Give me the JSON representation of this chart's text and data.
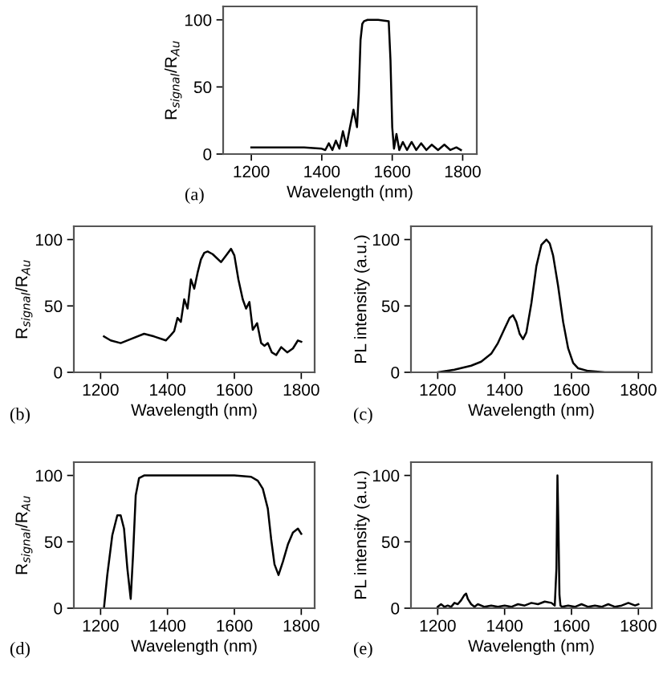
{
  "chart_data": [
    {
      "type": "line",
      "xlabel": "Wavelength (nm)",
      "ylabel": "R$_{signal}$/R$_{Au}$",
      "annotations": [
        "(a)"
      ],
      "xlim": [
        1120,
        1840
      ],
      "ylim": [
        0,
        110
      ],
      "xticks": [
        1200,
        1400,
        1600,
        1800
      ],
      "yticks": [
        0,
        50,
        100
      ],
      "grid": false,
      "series": [
        {
          "color": "#000000",
          "x": [
            1200,
            1250,
            1300,
            1350,
            1400,
            1410,
            1420,
            1430,
            1440,
            1450,
            1460,
            1470,
            1480,
            1490,
            1500,
            1505,
            1510,
            1515,
            1520,
            1530,
            1560,
            1590,
            1595,
            1600,
            1605,
            1612,
            1620,
            1630,
            1642,
            1655,
            1668,
            1682,
            1697,
            1712,
            1730,
            1748,
            1765,
            1782,
            1795
          ],
          "values": [
            5,
            5,
            5,
            5,
            4,
            3,
            8,
            3,
            10,
            4,
            17,
            6,
            20,
            33,
            20,
            45,
            85,
            97,
            99,
            100,
            100,
            99,
            70,
            20,
            4,
            15,
            3,
            9,
            3,
            9,
            3,
            8,
            3,
            7,
            3,
            7,
            3,
            5,
            3
          ]
        }
      ]
    },
    {
      "type": "line",
      "xlabel": "Wavelength (nm)",
      "ylabel": "R$_{signal}$/R$_{Au}$",
      "annotations": [
        "(b)"
      ],
      "xlim": [
        1120,
        1840
      ],
      "ylim": [
        0,
        110
      ],
      "xticks": [
        1200,
        1400,
        1600,
        1800
      ],
      "yticks": [
        0,
        50,
        100
      ],
      "grid": false,
      "series": [
        {
          "color": "#000000",
          "x": [
            1210,
            1230,
            1260,
            1290,
            1330,
            1360,
            1395,
            1410,
            1420,
            1430,
            1440,
            1450,
            1460,
            1470,
            1480,
            1490,
            1500,
            1510,
            1520,
            1535,
            1560,
            1575,
            1590,
            1600,
            1612,
            1625,
            1635,
            1645,
            1655,
            1668,
            1680,
            1690,
            1700,
            1712,
            1725,
            1740,
            1758,
            1775,
            1790,
            1800
          ],
          "values": [
            27,
            24,
            22,
            25,
            29,
            27,
            24,
            28,
            31,
            41,
            38,
            55,
            48,
            70,
            63,
            75,
            85,
            90,
            91,
            89,
            83,
            88,
            93,
            88,
            70,
            55,
            48,
            53,
            32,
            37,
            22,
            20,
            22,
            15,
            13,
            19,
            15,
            18,
            24,
            23
          ]
        }
      ]
    },
    {
      "type": "line",
      "xlabel": "Wavelength (nm)",
      "ylabel": "PL intensity (a.u.)",
      "annotations": [
        "(c)"
      ],
      "xlim": [
        1120,
        1840
      ],
      "ylim": [
        0,
        110
      ],
      "xticks": [
        1200,
        1400,
        1600,
        1800
      ],
      "yticks": [
        0,
        50,
        100
      ],
      "grid": false,
      "series": [
        {
          "color": "#000000",
          "x": [
            1200,
            1250,
            1300,
            1330,
            1360,
            1380,
            1400,
            1415,
            1425,
            1435,
            1445,
            1455,
            1465,
            1480,
            1495,
            1510,
            1525,
            1535,
            1545,
            1560,
            1575,
            1590,
            1605,
            1620,
            1650,
            1700,
            1800
          ],
          "values": [
            0,
            2,
            5,
            8,
            14,
            22,
            33,
            41,
            43,
            38,
            29,
            25,
            30,
            52,
            80,
            96,
            100,
            97,
            88,
            65,
            38,
            18,
            7,
            3,
            1,
            0,
            0
          ]
        }
      ]
    },
    {
      "type": "line",
      "xlabel": "Wavelength (nm)",
      "ylabel": "R$_{signal}$/R$_{Au}$",
      "annotations": [
        "(d)"
      ],
      "xlim": [
        1120,
        1840
      ],
      "ylim": [
        0,
        110
      ],
      "xticks": [
        1200,
        1400,
        1600,
        1800
      ],
      "yticks": [
        0,
        50,
        100
      ],
      "grid": false,
      "series": [
        {
          "color": "#000000",
          "x": [
            1210,
            1220,
            1235,
            1250,
            1260,
            1270,
            1280,
            1290,
            1297,
            1305,
            1315,
            1330,
            1400,
            1500,
            1600,
            1650,
            1670,
            1685,
            1700,
            1710,
            1720,
            1732,
            1745,
            1760,
            1775,
            1790,
            1800
          ],
          "values": [
            0,
            25,
            55,
            70,
            70,
            60,
            30,
            7,
            40,
            85,
            98,
            100,
            100,
            100,
            100,
            99,
            96,
            90,
            75,
            52,
            33,
            25,
            35,
            48,
            57,
            60,
            56
          ]
        }
      ]
    },
    {
      "type": "line",
      "xlabel": "Wavelength (nm)",
      "ylabel": "PL intensity (a.u.)",
      "annotations": [
        "(e)"
      ],
      "xlim": [
        1120,
        1840
      ],
      "ylim": [
        0,
        110
      ],
      "xticks": [
        1200,
        1400,
        1600,
        1800
      ],
      "yticks": [
        0,
        50,
        100
      ],
      "grid": false,
      "series": [
        {
          "color": "#000000",
          "x": [
            1200,
            1210,
            1220,
            1230,
            1240,
            1250,
            1260,
            1270,
            1280,
            1285,
            1290,
            1300,
            1310,
            1320,
            1340,
            1360,
            1380,
            1400,
            1420,
            1440,
            1460,
            1480,
            1500,
            1520,
            1540,
            1550,
            1555,
            1558,
            1561,
            1564,
            1567,
            1572,
            1590,
            1610,
            1630,
            1650,
            1670,
            1690,
            1710,
            1730,
            1750,
            1770,
            1790,
            1800
          ],
          "values": [
            1,
            3,
            1,
            2,
            1,
            4,
            3,
            6,
            10,
            11,
            7,
            3,
            1,
            3,
            1,
            2,
            1,
            2,
            1,
            3,
            2,
            4,
            3,
            5,
            4,
            2,
            30,
            100,
            60,
            10,
            2,
            1,
            2,
            1,
            3,
            1,
            2,
            1,
            3,
            1,
            2,
            4,
            2,
            3
          ]
        }
      ]
    }
  ]
}
